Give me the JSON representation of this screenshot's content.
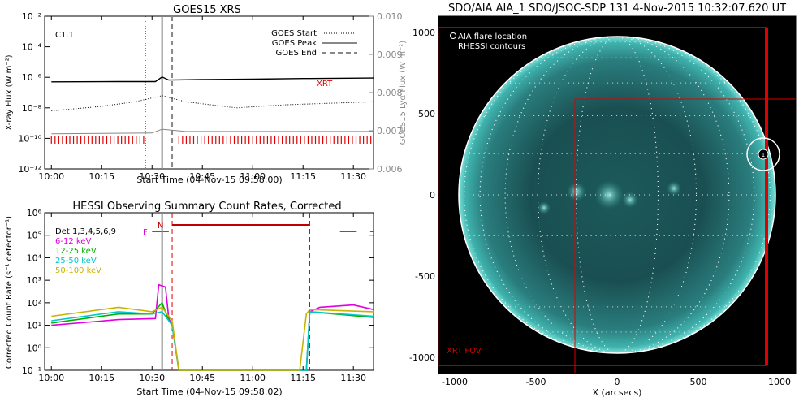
{
  "chart_data": [
    {
      "type": "line",
      "title": "GOES15 XRS",
      "class_label": "C1.1",
      "xlabel": "Start Time (04-Nov-15 09:58:00)",
      "ylabel_left": "X-ray Flux (W m⁻²)",
      "ylabel_right": "GOES15 Lyα Flux (W m⁻²)",
      "x_ticks": [
        "10:00",
        "10:15",
        "10:30",
        "10:45",
        "11:00",
        "11:15",
        "11:30"
      ],
      "xlim_minutes": [
        -2,
        96
      ],
      "y_ticks_left": [
        "10⁻²",
        "10⁻⁴",
        "10⁻⁶",
        "10⁻⁸",
        "10⁻¹⁰",
        "10⁻¹²"
      ],
      "ylim_left_log10": [
        -12,
        -2
      ],
      "y_ticks_right": [
        "0.010",
        "0.009",
        "0.008",
        "0.007",
        "0.006"
      ],
      "ylim_right": [
        0.006,
        0.01
      ],
      "legend": [
        "GOES Start",
        "GOES Peak",
        "GOES End"
      ],
      "legend_position": "top-right",
      "goes_start_min": 28,
      "goes_peak_min": 33,
      "goes_end_min": 36,
      "xrt_label": "XRT",
      "xrt_bar_ranges_min": [
        [
          0,
          28
        ],
        [
          38,
          96
        ]
      ],
      "series": [
        {
          "name": "long",
          "color": "#000000",
          "points": [
            [
              0,
              -6.3
            ],
            [
              20,
              -6.28
            ],
            [
              31,
              -6.28
            ],
            [
              33,
              -5.98
            ],
            [
              35,
              -6.18
            ],
            [
              45,
              -6.15
            ],
            [
              60,
              -6.12
            ],
            [
              75,
              -6.08
            ],
            [
              96,
              -6.05
            ]
          ]
        },
        {
          "name": "short",
          "color": "#000000",
          "points": [
            [
              0,
              -8.2
            ],
            [
              15,
              -7.9
            ],
            [
              25,
              -7.6
            ],
            [
              33,
              -7.2
            ],
            [
              40,
              -7.6
            ],
            [
              55,
              -8.0
            ],
            [
              70,
              -7.8
            ],
            [
              96,
              -7.6
            ]
          ]
        },
        {
          "name": "lya",
          "color": "#888888",
          "points": [
            [
              0,
              -9.7
            ],
            [
              30,
              -9.65
            ],
            [
              33,
              -9.4
            ],
            [
              40,
              -9.55
            ],
            [
              96,
              -9.55
            ]
          ]
        }
      ]
    },
    {
      "type": "line",
      "title": "HESSI Observing Summary Count Rates, Corrected",
      "xlabel": "Start Time (04-Nov-15 09:58:02)",
      "ylabel": "Corrected Count Rate (s⁻¹ detector⁻¹)",
      "x_ticks": [
        "10:00",
        "10:15",
        "10:30",
        "10:45",
        "11:00",
        "11:15",
        "11:30"
      ],
      "xlim_minutes": [
        -2,
        96
      ],
      "y_ticks": [
        "10⁶",
        "10⁵",
        "10⁴",
        "10³",
        "10²",
        "10¹",
        "10⁰",
        "10⁻¹"
      ],
      "ylim_log10": [
        -1,
        6
      ],
      "legend_title": "Det 1,3,4,5,6,9",
      "legend_position": "top-left",
      "flag_F": "F",
      "flag_N": "N",
      "flag_F_ranges_min": [
        [
          30,
          35
        ],
        [
          86,
          91
        ],
        [
          95,
          96
        ]
      ],
      "flag_N_ranges_min": [
        [
          36,
          77
        ]
      ],
      "markers_min": [
        33,
        36,
        77
      ],
      "series": [
        {
          "name": "6-12 keV",
          "color": "#e000e0",
          "points": [
            [
              0,
              1.0
            ],
            [
              20,
              1.25
            ],
            [
              31,
              1.3
            ],
            [
              32,
              2.8
            ],
            [
              34,
              2.7
            ],
            [
              35,
              1.3
            ],
            [
              36,
              1.0
            ],
            [
              38,
              -1.0
            ],
            [
              76,
              -1.0
            ],
            [
              77,
              1.6
            ],
            [
              80,
              1.8
            ],
            [
              90,
              1.9
            ],
            [
              96,
              1.7
            ]
          ]
        },
        {
          "name": "12-25 keV",
          "color": "#00b000",
          "points": [
            [
              0,
              1.1
            ],
            [
              20,
              1.5
            ],
            [
              30,
              1.5
            ],
            [
              33,
              2.0
            ],
            [
              35,
              1.2
            ],
            [
              36,
              1.0
            ],
            [
              38,
              -1.0
            ],
            [
              76,
              -1.0
            ],
            [
              77,
              1.6
            ],
            [
              96,
              1.35
            ]
          ]
        },
        {
          "name": "25-50 keV",
          "color": "#00c8c8",
          "points": [
            [
              0,
              1.2
            ],
            [
              20,
              1.6
            ],
            [
              30,
              1.5
            ],
            [
              33,
              1.6
            ],
            [
              35,
              1.2
            ],
            [
              36,
              1.0
            ],
            [
              38,
              -1.0
            ],
            [
              76,
              -1.0
            ],
            [
              77,
              1.6
            ],
            [
              96,
              1.4
            ]
          ]
        },
        {
          "name": "50-100 keV",
          "color": "#c8b400",
          "points": [
            [
              0,
              1.4
            ],
            [
              20,
              1.8
            ],
            [
              30,
              1.6
            ],
            [
              33,
              1.8
            ],
            [
              35,
              1.4
            ],
            [
              36,
              1.2
            ],
            [
              38,
              -1.0
            ],
            [
              74,
              -1.0
            ],
            [
              76,
              1.5
            ],
            [
              77,
              1.7
            ],
            [
              96,
              1.6
            ]
          ]
        }
      ]
    },
    {
      "type": "image",
      "title": "SDO/AIA AIA_1 SDO/JSOC-SDP 131   4-Nov-2015 10:32:07.620 UT",
      "xlabel": "X (arcsecs)",
      "x_ticks": [
        "-1000",
        "-500",
        "0",
        "500",
        "1000"
      ],
      "y_ticks": [
        "1000",
        "500",
        "0",
        "-500",
        "-1000"
      ],
      "xlim": [
        -1100,
        1100
      ],
      "ylim": [
        -1100,
        1100
      ],
      "legend": [
        "AIA flare location",
        "RHESSI contours"
      ],
      "fov_label": "XRT FOV",
      "flare_label": "1",
      "flare_xy": [
        900,
        250
      ],
      "solar_radius": 975,
      "fov_boxes": [
        {
          "x": [
            -1100,
            920
          ],
          "y": [
            -1050,
            1030
          ]
        },
        {
          "x": [
            -260,
            1100
          ],
          "y": [
            -1100,
            590
          ]
        }
      ]
    }
  ]
}
